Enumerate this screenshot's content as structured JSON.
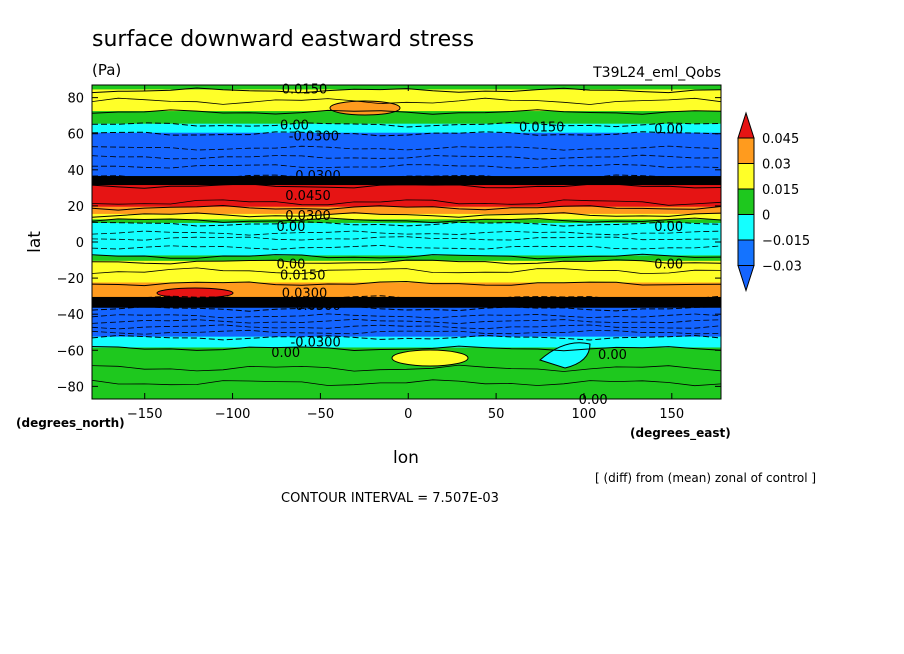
{
  "chart_data": {
    "type": "heatmap",
    "title": "surface downward eastward stress",
    "units": "(Pa)",
    "dataset": "T39L24_eml_Qobs",
    "xlabel": "lon",
    "ylabel": "lat",
    "xunit": "(degrees_east)",
    "yunit": "(degrees_north)",
    "xlim": [
      -180,
      178
    ],
    "ylim": [
      -87,
      87
    ],
    "xticks": [
      -150,
      -100,
      -50,
      0,
      50,
      100,
      150
    ],
    "yticks": [
      -80,
      -60,
      -40,
      -20,
      0,
      20,
      40,
      60,
      80
    ],
    "xtick_labels": [
      "−150",
      "−100",
      "−50",
      "0",
      "50",
      "100",
      "150"
    ],
    "ytick_labels": [
      "−80",
      "−60",
      "−40",
      "−20",
      "0",
      "20",
      "40",
      "60",
      "80"
    ],
    "footnote": "[ (diff) from (mean) zonal of control ]",
    "contour_interval": "CONTOUR INTERVAL = 7.507E-03",
    "colorbar": {
      "labels": [
        "0.045",
        "0.03",
        "0.015",
        "0",
        "−0.015",
        "−0.03"
      ],
      "colors": [
        "#e61414",
        "#ff9b1e",
        "#ffff28",
        "#1ec81e",
        "#14ffff",
        "#1473ff",
        "#1464ff"
      ]
    },
    "zonal_bands": [
      {
        "lat_from": 87,
        "lat_to": 84,
        "color": "#1ec81e"
      },
      {
        "lat_from": 84,
        "lat_to": 72,
        "color": "#ffff28"
      },
      {
        "lat_from": 72,
        "lat_to": 65,
        "color": "#1ec81e"
      },
      {
        "lat_from": 65,
        "lat_to": 60,
        "color": "#14ffff"
      },
      {
        "lat_from": 60,
        "lat_to": 36,
        "color": "#1464ff"
      },
      {
        "lat_from": 36,
        "lat_to": 31,
        "color": "#000000"
      },
      {
        "lat_from": 31,
        "lat_to": 19,
        "color": "#e61414"
      },
      {
        "lat_from": 19,
        "lat_to": 15,
        "color": "#ff9b1e"
      },
      {
        "lat_from": 15,
        "lat_to": 12,
        "color": "#ffff28"
      },
      {
        "lat_from": 12,
        "lat_to": 10,
        "color": "#1ec81e"
      },
      {
        "lat_from": 10,
        "lat_to": -8,
        "color": "#14ffff"
      },
      {
        "lat_from": -8,
        "lat_to": -11,
        "color": "#1ec81e"
      },
      {
        "lat_from": -11,
        "lat_to": -23,
        "color": "#ffff28"
      },
      {
        "lat_from": -23,
        "lat_to": -31,
        "color": "#ff9b1e"
      },
      {
        "lat_from": -31,
        "lat_to": -37,
        "color": "#000000"
      },
      {
        "lat_from": -37,
        "lat_to": -53,
        "color": "#1464ff"
      },
      {
        "lat_from": -53,
        "lat_to": -59,
        "color": "#14ffff"
      },
      {
        "lat_from": -59,
        "lat_to": -87,
        "color": "#1ec81e"
      }
    ],
    "contour_labels": [
      {
        "text": "0.0150",
        "lon": -72,
        "lat": 85
      },
      {
        "text": "0.00",
        "lon": -73,
        "lat": 65
      },
      {
        "text": "0.0150",
        "lon": 63,
        "lat": 64
      },
      {
        "text": "0.00",
        "lon": 140,
        "lat": 63
      },
      {
        "text": "-0.0300",
        "lon": -68,
        "lat": 59
      },
      {
        "text": "-0.0300",
        "lon": -67,
        "lat": 37
      },
      {
        "text": "0.0450",
        "lon": -70,
        "lat": 26
      },
      {
        "text": "0.0300",
        "lon": -70,
        "lat": 15
      },
      {
        "text": "0.00",
        "lon": -75,
        "lat": 9
      },
      {
        "text": "0.00",
        "lon": 140,
        "lat": 9
      },
      {
        "text": "0.00",
        "lon": -75,
        "lat": -12
      },
      {
        "text": "0.00",
        "lon": 140,
        "lat": -12
      },
      {
        "text": "0.0150",
        "lon": -73,
        "lat": -18
      },
      {
        "text": "0.0300",
        "lon": -72,
        "lat": -28
      },
      {
        "text": "-0.0300",
        "lon": -67,
        "lat": -35
      },
      {
        "text": "-0.0300",
        "lon": -67,
        "lat": -55
      },
      {
        "text": "0.00",
        "lon": -78,
        "lat": -61
      },
      {
        "text": "0.00",
        "lon": 108,
        "lat": -62
      },
      {
        "text": "0.00",
        "lon": 97,
        "lat": -87
      }
    ]
  }
}
